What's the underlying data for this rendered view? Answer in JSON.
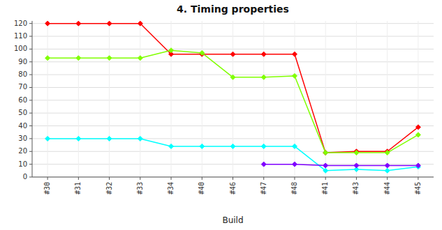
{
  "chart_data": {
    "type": "line",
    "title": "4. Timing properties",
    "xlabel": "Build",
    "categories": [
      "#30",
      "#31",
      "#32",
      "#33",
      "#34",
      "#40",
      "#46",
      "#47",
      "#48",
      "#41",
      "#43",
      "#44",
      "#45"
    ],
    "series": [
      {
        "color": "#ff0000",
        "marker": "diamond",
        "values": [
          120,
          120,
          120,
          120,
          96,
          96,
          96,
          96,
          96,
          19,
          20,
          20,
          39
        ]
      },
      {
        "color": "#80ff00",
        "marker": "diamond",
        "values": [
          93,
          93,
          93,
          93,
          99,
          97,
          78,
          78,
          79,
          19,
          19,
          19,
          33
        ]
      },
      {
        "color": "#00ffff",
        "marker": "diamond",
        "values": [
          30,
          30,
          30,
          30,
          24,
          24,
          24,
          24,
          24,
          5,
          6,
          5,
          8
        ]
      },
      {
        "color": "#8000ff",
        "marker": "diamond",
        "values": [
          null,
          null,
          null,
          null,
          null,
          null,
          null,
          10,
          10,
          9,
          9,
          9,
          9
        ]
      }
    ],
    "ylim": [
      0,
      122
    ],
    "yticks": [
      0,
      10,
      20,
      30,
      40,
      50,
      60,
      70,
      80,
      90,
      100,
      110,
      120
    ],
    "grid": true
  }
}
